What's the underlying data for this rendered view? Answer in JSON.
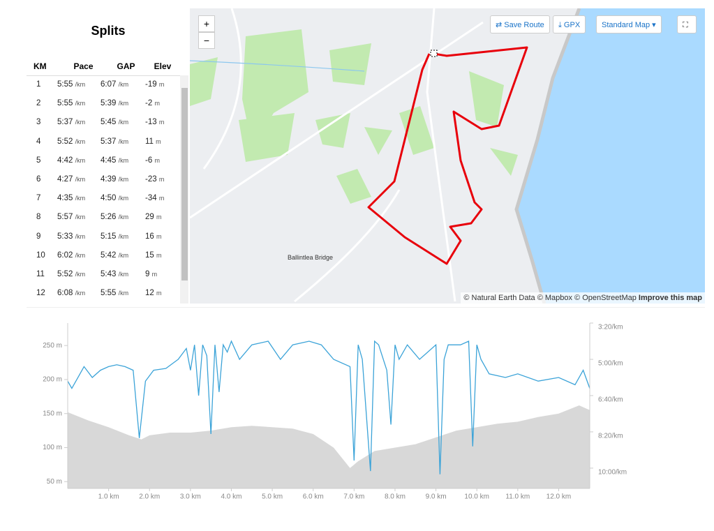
{
  "splits": {
    "title": "Splits",
    "columns": [
      "KM",
      "Pace",
      "GAP",
      "Elev"
    ],
    "units": {
      "pace": "/km",
      "gap": "/km",
      "elev": "m"
    },
    "rows": [
      [
        "1",
        "5:55",
        "6:07",
        "-19"
      ],
      [
        "2",
        "5:55",
        "5:39",
        "-2"
      ],
      [
        "3",
        "5:37",
        "5:45",
        "-13"
      ],
      [
        "4",
        "5:52",
        "5:37",
        "11"
      ],
      [
        "5",
        "4:42",
        "4:45",
        "-6"
      ],
      [
        "6",
        "4:27",
        "4:39",
        "-23"
      ],
      [
        "7",
        "4:35",
        "4:50",
        "-34"
      ],
      [
        "8",
        "5:57",
        "5:26",
        "29"
      ],
      [
        "9",
        "5:33",
        "5:15",
        "16"
      ],
      [
        "10",
        "6:02",
        "5:42",
        "15"
      ],
      [
        "11",
        "5:52",
        "5:43",
        "9"
      ],
      [
        "12",
        "6:08",
        "5:55",
        "12"
      ]
    ]
  },
  "map": {
    "zoom_in": "+",
    "zoom_out": "−",
    "buttons": [
      "Save Route",
      "GPX",
      "Standard Map"
    ],
    "place_label": "Ballintlea Bridge",
    "attribution": "© Natural Earth Data © Mapbox © OpenStreetMap",
    "attribution_link": "Improve this map"
  },
  "chart_data": {
    "type": "line",
    "xlim": [
      0,
      12.76
    ],
    "xticks": [
      {
        "value": 1,
        "label": "1.0 km"
      },
      {
        "value": 2,
        "label": "2.0 km"
      },
      {
        "value": 3,
        "label": "3.0 km"
      },
      {
        "value": 4,
        "label": "4.0 km"
      },
      {
        "value": 5,
        "label": "5.0 km"
      },
      {
        "value": 6,
        "label": "6.0 km"
      },
      {
        "value": 7,
        "label": "7.0 km"
      },
      {
        "value": 8,
        "label": "8.0 km"
      },
      {
        "value": 9,
        "label": "9.0 km"
      },
      {
        "value": 10,
        "label": "10.0 km"
      },
      {
        "value": 11,
        "label": "11.0 km"
      },
      {
        "value": 12,
        "label": "12.0 km"
      }
    ],
    "ylim": [
      40,
      283
    ],
    "yticks": [
      {
        "value": 50,
        "label": "50 m"
      },
      {
        "value": 100,
        "label": "100 m"
      },
      {
        "value": 150,
        "label": "150 m"
      },
      {
        "value": 200,
        "label": "200 m"
      },
      {
        "value": 250,
        "label": "250 m"
      }
    ],
    "y2lim": [
      200,
      656
    ],
    "y2_reversed": true,
    "y2ticks": [
      {
        "value": 200,
        "label": "3:20/km"
      },
      {
        "value": 300,
        "label": "5:00/km"
      },
      {
        "value": 400,
        "label": "6:40/km"
      },
      {
        "value": 500,
        "label": "8:20/km"
      },
      {
        "value": 600,
        "label": "10:00/km"
      }
    ],
    "series": [
      {
        "kind": "area",
        "color": "#d8d8d8",
        "x": [
          0,
          0.5,
          1.0,
          1.5,
          1.8,
          2.0,
          2.5,
          3.0,
          3.5,
          4.0,
          4.5,
          5.0,
          5.5,
          6.0,
          6.5,
          6.9,
          7.1,
          7.5,
          8.0,
          8.5,
          9.0,
          9.5,
          10.0,
          10.5,
          11.0,
          11.5,
          12.0,
          12.5,
          12.76
        ],
        "values": [
          152,
          140,
          130,
          118,
          112,
          118,
          122,
          122,
          125,
          130,
          132,
          130,
          128,
          120,
          100,
          70,
          80,
          95,
          100,
          105,
          115,
          125,
          130,
          135,
          138,
          145,
          150,
          162,
          155
        ]
      },
      {
        "kind": "line",
        "axis": "y2",
        "color": "#3ba3d8",
        "x": [
          0,
          0.1,
          0.3,
          0.4,
          0.6,
          0.8,
          1.0,
          1.2,
          1.4,
          1.6,
          1.75,
          1.9,
          2.1,
          2.4,
          2.7,
          2.9,
          3.0,
          3.1,
          3.2,
          3.3,
          3.4,
          3.5,
          3.6,
          3.7,
          3.8,
          3.9,
          4.0,
          4.2,
          4.5,
          4.9,
          5.2,
          5.5,
          5.9,
          6.2,
          6.5,
          6.9,
          7.0,
          7.1,
          7.2,
          7.4,
          7.5,
          7.6,
          7.8,
          7.9,
          8.0,
          8.1,
          8.3,
          8.6,
          9.0,
          9.1,
          9.2,
          9.3,
          9.6,
          9.8,
          9.9,
          10.0,
          10.1,
          10.3,
          10.7,
          11.0,
          11.5,
          12.0,
          12.4,
          12.6,
          12.76
        ],
        "values": [
          360,
          380,
          340,
          320,
          350,
          330,
          320,
          315,
          320,
          330,
          517,
          360,
          330,
          325,
          300,
          270,
          330,
          260,
          400,
          260,
          290,
          506,
          260,
          390,
          260,
          280,
          250,
          300,
          260,
          250,
          300,
          260,
          250,
          260,
          300,
          320,
          579,
          260,
          300,
          608,
          250,
          260,
          330,
          480,
          260,
          300,
          260,
          300,
          260,
          617,
          300,
          260,
          260,
          250,
          540,
          260,
          300,
          340,
          350,
          340,
          360,
          350,
          370,
          330,
          380
        ]
      }
    ]
  }
}
